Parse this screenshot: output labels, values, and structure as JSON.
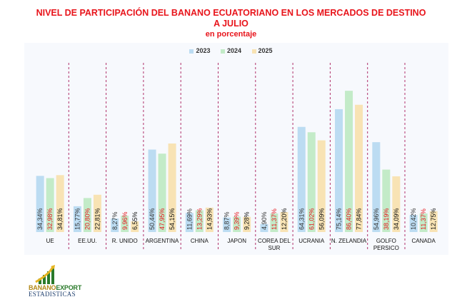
{
  "chart_data": {
    "type": "bar",
    "title_line1": "NIVEL DE PARTICIPACIÓN DEL BANANO ECUATORIANO EN LOS MERCADOS DE DESTINO",
    "title_line2": "A JULIO",
    "subtitle": "en porcentaje",
    "categories": [
      "UE",
      "EE.UU.",
      "R. UNIDO",
      "ARGENTINA",
      "CHINA",
      "JAPON",
      "COREA DEL SUR",
      "UCRANIA",
      "N. ZELANDIA",
      "GOLFO PERSICO",
      "CANADA"
    ],
    "category_lines": [
      [
        "UE"
      ],
      [
        "EE.UU."
      ],
      [
        "R. UNIDO"
      ],
      [
        "ARGENTINA"
      ],
      [
        "CHINA"
      ],
      [
        "JAPON"
      ],
      [
        "COREA DEL",
        "SUR"
      ],
      [
        "UCRANIA"
      ],
      [
        "N. ZELANDIA"
      ],
      [
        "GOLFO",
        "PERSICO"
      ],
      [
        "CANADA"
      ]
    ],
    "series": [
      {
        "name": "2023",
        "color": "#bcdcf2",
        "label_color": "#333333",
        "values": [
          34.34,
          15.77,
          8.27,
          50.44,
          11.69,
          8.87,
          4.9,
          64.31,
          75.14,
          54.96,
          10.42
        ],
        "labels": [
          "34,34%",
          "15,77%",
          "8,27%",
          "50,44%",
          "11,69%",
          "8,87%",
          "4,90%",
          "64,31%",
          "75,14%",
          "54,96%",
          "10,42%"
        ]
      },
      {
        "name": "2024",
        "color": "#c3ebc8",
        "label_color": "#e8141b",
        "values": [
          32.98,
          20.8,
          9.96,
          47.95,
          13.29,
          9.39,
          11.37,
          61.02,
          86.4,
          38.19,
          11.37
        ],
        "labels": [
          "32,98%",
          "20,80%",
          "9,96%",
          "47,95%",
          "13,29%",
          "9,39%",
          "11,37%",
          "61,02%",
          "86,40%",
          "38,19%",
          "11,37%"
        ]
      },
      {
        "name": "2025",
        "color": "#f8e3b4",
        "label_color": "#111111",
        "values": [
          34.81,
          22.81,
          6.55,
          54.15,
          14.93,
          9.28,
          12.2,
          56.09,
          77.84,
          34.09,
          12.75
        ],
        "labels": [
          "34,81%",
          "22,81%",
          "6,55%",
          "54,15%",
          "14,93%",
          "9,28%",
          "12,20%",
          "56,09%",
          "77,84%",
          "34,09%",
          "12,75%"
        ]
      }
    ],
    "ylim": [
      0,
      100
    ],
    "legend_position": "top-center"
  },
  "logo": {
    "word1": "BANANO",
    "word2": "EXPORT",
    "subtitle": "ESTADISTICAS"
  }
}
